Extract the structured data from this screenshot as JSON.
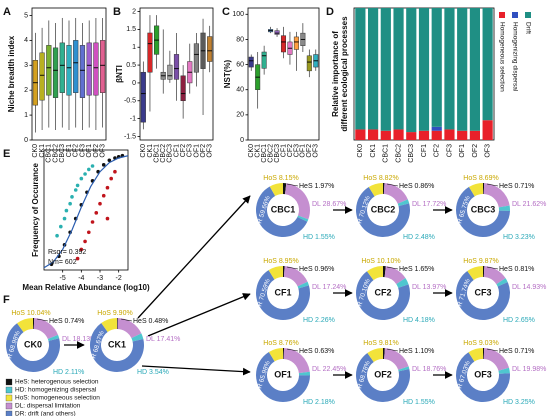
{
  "chart_data": [
    {
      "type": "box",
      "panel": "A",
      "ylabel": "Niche breadth index",
      "categories": [
        "CK0",
        "CK1",
        "CBC1",
        "CBC2",
        "CBC3",
        "CF1",
        "CF2",
        "CF3",
        "OF1",
        "OF2",
        "OF3"
      ],
      "boxes": [
        [
          0.3,
          1.4,
          2.3,
          3.2,
          4.3
        ],
        [
          0.4,
          1.6,
          2.6,
          3.5,
          4.5
        ],
        [
          0.5,
          1.8,
          2.9,
          3.8,
          4.8
        ],
        [
          0.4,
          1.7,
          2.8,
          3.7,
          4.7
        ],
        [
          0.5,
          1.9,
          3.0,
          3.9,
          4.9
        ],
        [
          0.4,
          1.8,
          2.9,
          3.8,
          4.8
        ],
        [
          0.5,
          1.9,
          3.1,
          4.0,
          4.9
        ],
        [
          0.4,
          1.7,
          2.8,
          3.8,
          4.7
        ],
        [
          0.5,
          1.8,
          3.0,
          3.9,
          4.8
        ],
        [
          0.4,
          1.8,
          2.9,
          3.9,
          4.9
        ],
        [
          0.5,
          1.9,
          3.0,
          4.0,
          4.9
        ]
      ],
      "colors": [
        "#d4a020",
        "#b8b020",
        "#7ab030",
        "#30a050",
        "#30b090",
        "#30b0c0",
        "#3090d0",
        "#6070d0",
        "#a060d0",
        "#d050c0",
        "#e06090"
      ],
      "ylim": [
        0,
        5.3
      ],
      "yticks": [
        0,
        1,
        2,
        3,
        4,
        5
      ]
    },
    {
      "type": "box",
      "panel": "B",
      "ylabel": "βNTI",
      "categories": [
        "CK0",
        "CK1",
        "CBC1",
        "CBC2",
        "CBC3",
        "CF1",
        "CF2",
        "CF3",
        "OF1",
        "OF2",
        "OF3"
      ],
      "boxes": [
        [
          -1.3,
          -1.1,
          -0.3,
          0.3,
          0.6
        ],
        [
          -0.8,
          0.3,
          1.1,
          1.4,
          1.9
        ],
        [
          0.4,
          0.8,
          1.2,
          1.6,
          1.9
        ],
        [
          -0.3,
          0.1,
          0.2,
          0.3,
          1.5
        ],
        [
          0,
          0.1,
          0.2,
          0.5,
          0.9
        ],
        [
          -0.5,
          0.1,
          0.4,
          0.8,
          1.4
        ],
        [
          -1.0,
          -0.5,
          -0.3,
          0.2,
          0.5
        ],
        [
          -0.3,
          0,
          0.3,
          0.6,
          1.1
        ],
        [
          -0.1,
          0.3,
          0.8,
          1.1,
          1.4
        ],
        [
          -0.9,
          0.4,
          0.9,
          1.4,
          1.8
        ],
        [
          0.3,
          0.6,
          0.9,
          1.3,
          1.6
        ]
      ],
      "colors": [
        "#3a3a8c",
        "#d62728",
        "#2ca02c",
        "#8a8a8a",
        "#a0a0a0",
        "#7a4fa8",
        "#8c2040",
        "#e377c2",
        "#7f7f7f",
        "#5a5a5a",
        "#c08030"
      ],
      "ylim": [
        -1.6,
        2.1
      ],
      "yticks": [
        -1.5,
        -1,
        -0.5,
        0,
        0.5,
        1,
        1.5,
        2
      ]
    },
    {
      "type": "box",
      "panel": "C",
      "ylabel": "NST(%)",
      "categories": [
        "CK0",
        "CK1",
        "CBC1",
        "CBC2",
        "CBC3",
        "CF1",
        "CF2",
        "CF3",
        "OF1",
        "OF2",
        "OF3"
      ],
      "boxes": [
        [
          55,
          58,
          63,
          66,
          68
        ],
        [
          25,
          40,
          50,
          60,
          70
        ],
        [
          52,
          57,
          67,
          70,
          75
        ],
        [
          85,
          86,
          87,
          88,
          90
        ],
        [
          82,
          84,
          85,
          87,
          89
        ],
        [
          65,
          70,
          78,
          83,
          90
        ],
        [
          60,
          68,
          73,
          78,
          86
        ],
        [
          55,
          72,
          78,
          82,
          86
        ],
        [
          70,
          75,
          80,
          85,
          93
        ],
        [
          50,
          55,
          62,
          67,
          72
        ],
        [
          55,
          58,
          63,
          68,
          72
        ]
      ],
      "colors": [
        "#3a3a8c",
        "#2ca02c",
        "#30b090",
        "#4a90d0",
        "#9467bd",
        "#d62728",
        "#e377c2",
        "#ff9f40",
        "#8a8a8a",
        "#9a9a20",
        "#30b0c0"
      ],
      "ylim": [
        0,
        105
      ],
      "yticks": [
        0,
        20,
        40,
        60,
        80,
        100
      ]
    },
    {
      "type": "stacked-bar",
      "panel": "D",
      "ylabel": "Relative importance of",
      "ylabel2": "different ecological processes",
      "categories": [
        "CK0",
        "CK1",
        "CBC1",
        "CBC2",
        "CBC3",
        "CF1",
        "CF2",
        "CF3",
        "OF1",
        "OF2",
        "OF3"
      ],
      "series": [
        {
          "name": "Homogeneous selection",
          "color": "#e8202a",
          "values": [
            0.08,
            0.08,
            0.07,
            0.08,
            0.06,
            0.07,
            0.07,
            0.08,
            0.07,
            0.07,
            0.15
          ]
        },
        {
          "name": "Homogenizing dispersal",
          "color": "#3050c0",
          "values": [
            0,
            0,
            0,
            0,
            0,
            0,
            0.03,
            0,
            0,
            0,
            0
          ]
        },
        {
          "name": "Drift",
          "color": "#1f8f84",
          "values": [
            0.92,
            0.92,
            0.93,
            0.92,
            0.94,
            0.93,
            0.9,
            0.92,
            0.93,
            0.93,
            0.85
          ]
        }
      ],
      "ylim": [
        0,
        1
      ]
    },
    {
      "type": "scatter",
      "panel": "E",
      "ylabel": "Frequency of Occurance",
      "xlabel": "Mean Relative Abundance (log10)",
      "annotations": [
        "Rsqr= 0.392",
        "Nm= 602"
      ],
      "series": [
        {
          "color": "#2ab0b0",
          "x": [
            -5.3,
            -5.1,
            -4.9,
            -4.8,
            -4.6,
            -4.5,
            -4.3,
            -4.2,
            -4.0,
            -3.8,
            -3.6,
            -3.4
          ],
          "y": [
            0.3,
            0.38,
            0.45,
            0.52,
            0.58,
            0.64,
            0.7,
            0.74,
            0.8,
            0.84,
            0.88,
            0.91
          ]
        },
        {
          "color": "#111111",
          "x": [
            -5.6,
            -5.2,
            -4.9,
            -4.6,
            -4.3,
            -4.0,
            -3.7,
            -3.4,
            -3.1,
            -2.8,
            -2.5,
            -2.2,
            -2.0,
            -1.8
          ],
          "y": [
            0.05,
            0.12,
            0.22,
            0.33,
            0.45,
            0.57,
            0.68,
            0.78,
            0.86,
            0.92,
            0.96,
            0.98,
            0.99,
            1.0
          ]
        },
        {
          "color": "#c0141c",
          "x": [
            -4.2,
            -4.0,
            -3.8,
            -3.6,
            -3.4,
            -3.2,
            -3.0,
            -2.8,
            -2.6,
            -2.4,
            -2.2,
            -2.6
          ],
          "y": [
            0.1,
            0.18,
            0.25,
            0.33,
            0.42,
            0.5,
            0.58,
            0.65,
            0.72,
            0.8,
            0.86,
            0.45
          ]
        },
        {
          "type": "line",
          "color": "#2a5db0",
          "x": [
            -6,
            -5.5,
            -5,
            -4.5,
            -4,
            -3.5,
            -3,
            -2.5,
            -2,
            -1.5
          ],
          "y": [
            0.02,
            0.07,
            0.18,
            0.35,
            0.55,
            0.73,
            0.86,
            0.94,
            0.98,
            1.0
          ]
        }
      ],
      "xlim": [
        -6,
        -1.5
      ],
      "xticks": [
        -5,
        -4,
        -3,
        -2
      ],
      "ylim": [
        0,
        1.05
      ]
    },
    {
      "type": "donut",
      "panel": "F",
      "colors": [
        "#111111",
        "#c58fd0",
        "#4fc6cf",
        "#5b7fc6",
        "#f2e33a"
      ],
      "label_colors": [
        "#111111",
        "#b46ec4",
        "#2aa9b8",
        "#ffffff",
        "#c9a800"
      ],
      "legend": [
        {
          "label": "HeS: heterogenous selection",
          "color": "#111111"
        },
        {
          "label": "HD: homogenizing dispersal",
          "color": "#4fc6cf"
        },
        {
          "label": "HoS: homogeneous selection",
          "color": "#f2e33a"
        },
        {
          "label": "DL: dispersal limitation",
          "color": "#c58fd0"
        },
        {
          "label": "DR: drift (and others)",
          "color": "#5b7fc6"
        }
      ],
      "donuts": [
        {
          "title": "CK0",
          "values": [
            0.74,
            18.13,
            2.11,
            68.98,
            10.04
          ],
          "value_labels": [
            "HeS 0.74%",
            "DL 18.13%",
            "HD 2.11%",
            "DR 68.98%",
            "HoS 10.04%"
          ]
        },
        {
          "title": "CK1",
          "values": [
            0.48,
            17.41,
            3.54,
            68.67,
            9.9
          ],
          "value_labels": [
            "HeS 0.48%",
            "DL 17.41%",
            "HD 3.54%",
            "DR 68.67%",
            "HoS 9.90%"
          ]
        },
        {
          "title": "CBC1",
          "values": [
            1.97,
            28.67,
            1.55,
            59.66,
            8.15
          ],
          "value_labels": [
            "HeS 1.97%",
            "DL 28.67%",
            "HD 1.55%",
            "DR 59.66%",
            "HoS 8.15%"
          ]
        },
        {
          "title": "CBC2",
          "values": [
            0.86,
            17.72,
            2.48,
            70.12,
            8.82
          ],
          "value_labels": [
            "HeS 0.86%",
            "DL 17.72%",
            "HD 2.48%",
            "DR 70.12%",
            "HoS 8.82%"
          ]
        },
        {
          "title": "CBC3",
          "values": [
            0.71,
            21.62,
            3.23,
            65.75,
            8.69
          ],
          "value_labels": [
            "HeS 0.71%",
            "DL 21.62%",
            "HD 3.23%",
            "DR 65.75%",
            "HoS 8.69%"
          ]
        },
        {
          "title": "CF1",
          "values": [
            0.96,
            17.24,
            2.26,
            70.59,
            8.95
          ],
          "value_labels": [
            "HeS 0.96%",
            "DL 17.24%",
            "HD 2.26%",
            "DR 70.59%",
            "HoS 8.95%"
          ]
        },
        {
          "title": "CF2",
          "values": [
            1.65,
            13.97,
            4.18,
            70.1,
            10.1
          ],
          "value_labels": [
            "HeS 1.65%",
            "DL 13.97%",
            "HD 4.18%",
            "DR 70.10%",
            "HoS 10.10%"
          ]
        },
        {
          "title": "CF3",
          "values": [
            0.81,
            14.93,
            2.65,
            71.74,
            9.87
          ],
          "value_labels": [
            "HeS 0.81%",
            "DL 14.93%",
            "HD 2.65%",
            "DR 71.74%",
            "HoS 9.87%"
          ]
        },
        {
          "title": "OF1",
          "values": [
            0.63,
            22.45,
            2.18,
            65.98,
            8.76
          ],
          "value_labels": [
            "HeS 0.63%",
            "DL 22.45%",
            "HD 2.18%",
            "DR 65.98%",
            "HoS 8.76%"
          ]
        },
        {
          "title": "OF2",
          "values": [
            1.1,
            18.76,
            1.55,
            68.78,
            9.81
          ],
          "value_labels": [
            "HeS 1.10%",
            "DL 18.76%",
            "HD 1.55%",
            "DR 68.78%",
            "HoS 9.81%"
          ]
        },
        {
          "title": "OF3",
          "values": [
            0.71,
            19.98,
            3.25,
            67.03,
            9.03
          ],
          "value_labels": [
            "HeS 0.71%",
            "DL 19.98%",
            "HD 3.25%",
            "DR 67.03%",
            "HoS 9.03%"
          ]
        }
      ]
    }
  ]
}
